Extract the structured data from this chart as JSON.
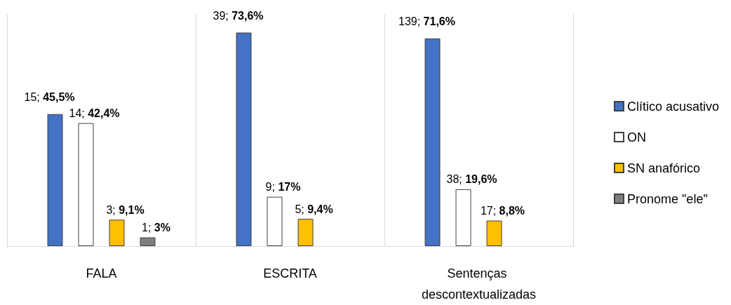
{
  "chart_data": {
    "type": "bar",
    "categories": [
      "FALA",
      "ESCRITA",
      "Sentenças descontextualizadas"
    ],
    "series": [
      {
        "name": "Clítico acusativo",
        "color": "#4472c4",
        "values": [
          45.5,
          73.6,
          71.6
        ],
        "value_labels": [
          "15; 45,5%",
          "39; 73,6%",
          "139; 71,6%"
        ]
      },
      {
        "name": "ON",
        "color": "#ffffff",
        "values": [
          42.4,
          17,
          19.6
        ],
        "value_labels": [
          "14; 42,4%",
          "9; 17%",
          "38; 19,6%"
        ]
      },
      {
        "name": "SN anafórico",
        "color": "#ffc000",
        "values": [
          9.1,
          9.4,
          8.8
        ],
        "value_labels": [
          "3; 9,1%",
          "5; 9,4%",
          "17; 8,8%"
        ]
      },
      {
        "name": "Pronome \"ele\"",
        "color": "#7f7f7f",
        "values": [
          3,
          null,
          null
        ],
        "value_labels": [
          "1; 3%",
          null,
          null
        ]
      }
    ],
    "grid": "x",
    "legend": "right"
  }
}
